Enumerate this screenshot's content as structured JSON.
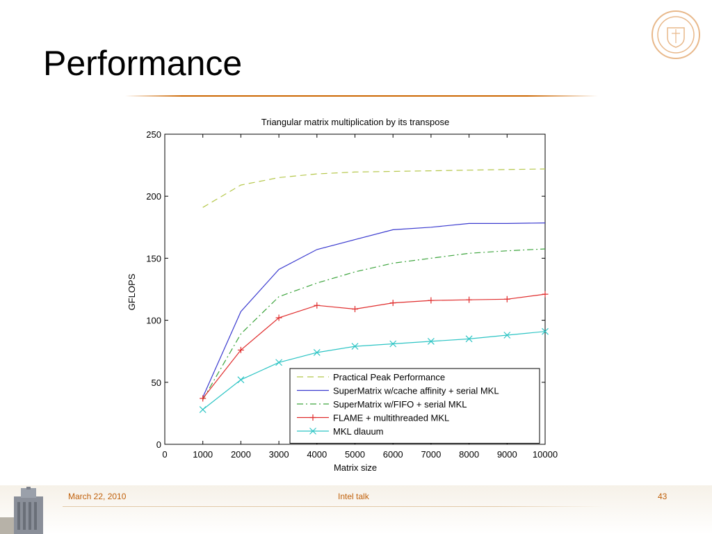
{
  "slide": {
    "title": "Performance",
    "footer": {
      "date": "March 22, 2010",
      "center": "Intel talk",
      "page": "43"
    },
    "accent_color": "#cc6600"
  },
  "chart_data": {
    "type": "line",
    "title": "Triangular matrix multiplication by its transpose",
    "xlabel": "Matrix size",
    "ylabel": "GFLOPS",
    "xlim": [
      0,
      10000
    ],
    "ylim": [
      0,
      250
    ],
    "xticks": [
      0,
      1000,
      2000,
      3000,
      4000,
      5000,
      6000,
      7000,
      8000,
      9000,
      10000
    ],
    "yticks": [
      0,
      50,
      100,
      150,
      200,
      250
    ],
    "grid": false,
    "legend_position": "bottom-right",
    "x": [
      1000,
      2000,
      3000,
      4000,
      5000,
      6000,
      7000,
      8000,
      9000,
      10000
    ],
    "series": [
      {
        "name": "Practical Peak Performance",
        "color": "#b5c74a",
        "style": "dashed",
        "marker": "none",
        "values": [
          191,
          209,
          215,
          218,
          219.5,
          220,
          220.5,
          221,
          221.5,
          222
        ]
      },
      {
        "name": "SuperMatrix w/cache affinity + serial MKL",
        "color": "#3a3acf",
        "style": "solid",
        "marker": "none",
        "values": [
          38,
          107,
          141,
          157,
          165,
          173,
          175,
          178,
          178,
          178.5
        ]
      },
      {
        "name": "SuperMatrix w/FIFO + serial MKL",
        "color": "#3ca43c",
        "style": "dashdot",
        "marker": "none",
        "values": [
          36,
          89,
          119,
          130,
          139,
          146,
          150,
          154,
          156,
          157.5
        ]
      },
      {
        "name": "FLAME + multithreaded MKL",
        "color": "#e02c2c",
        "style": "solid",
        "marker": "plus",
        "values": [
          37,
          76,
          102,
          112,
          109,
          114,
          116,
          116.5,
          117,
          121
        ]
      },
      {
        "name": "MKL dlauum",
        "color": "#2cc4c4",
        "style": "solid",
        "marker": "x",
        "values": [
          28,
          52,
          66,
          74,
          79,
          81,
          83,
          85,
          88,
          91
        ]
      }
    ]
  }
}
